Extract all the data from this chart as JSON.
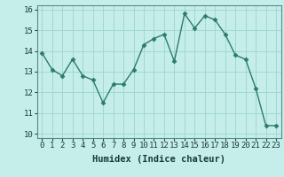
{
  "x": [
    0,
    1,
    2,
    3,
    4,
    5,
    6,
    7,
    8,
    9,
    10,
    11,
    12,
    13,
    14,
    15,
    16,
    17,
    18,
    19,
    20,
    21,
    22,
    23
  ],
  "y": [
    13.9,
    13.1,
    12.8,
    13.6,
    12.8,
    12.6,
    11.5,
    12.4,
    12.4,
    13.1,
    14.3,
    14.6,
    14.8,
    13.5,
    15.8,
    15.1,
    15.7,
    15.5,
    14.8,
    13.8,
    13.6,
    12.2,
    10.4,
    10.4
  ],
  "line_color": "#2d7a6e",
  "marker": "D",
  "markersize": 2.5,
  "linewidth": 1.0,
  "bg_color": "#c5eeea",
  "grid_color": "#a0d8d2",
  "xlabel": "Humidex (Indice chaleur)",
  "xlabel_fontsize": 7.5,
  "tick_fontsize": 6.5,
  "xlim": [
    -0.5,
    23.5
  ],
  "ylim": [
    9.8,
    16.2
  ],
  "yticks": [
    10,
    11,
    12,
    13,
    14,
    15,
    16
  ],
  "xticks": [
    0,
    1,
    2,
    3,
    4,
    5,
    6,
    7,
    8,
    9,
    10,
    11,
    12,
    13,
    14,
    15,
    16,
    17,
    18,
    19,
    20,
    21,
    22,
    23
  ]
}
